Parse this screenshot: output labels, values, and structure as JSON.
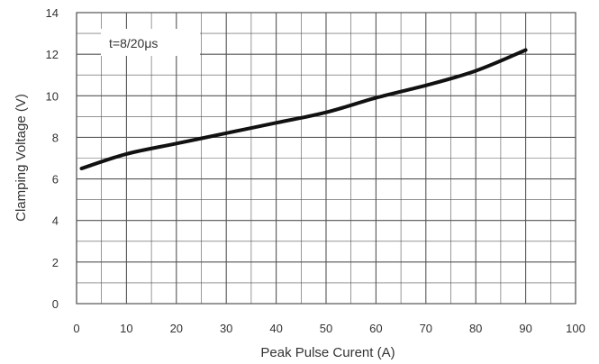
{
  "chart_data": {
    "type": "line",
    "title": "",
    "xlabel": "Peak  Pulse Curent (A)",
    "ylabel": "Clamping Voltage (V)",
    "xlim": [
      0,
      100
    ],
    "ylim": [
      0,
      14
    ],
    "x_ticks": [
      0,
      10,
      20,
      30,
      40,
      50,
      60,
      70,
      80,
      90,
      100
    ],
    "y_ticks": [
      0,
      2,
      4,
      6,
      8,
      10,
      12,
      14
    ],
    "grid": true,
    "annotation": "t=8/20μs",
    "series": [
      {
        "x": [
          1,
          10,
          20,
          30,
          40,
          50,
          60,
          70,
          80,
          90
        ],
        "values": [
          6.5,
          7.2,
          7.7,
          8.2,
          8.7,
          9.2,
          9.9,
          10.5,
          11.2,
          12.2
        ]
      }
    ]
  },
  "colors": {
    "line": "#111111",
    "grid": "#555555",
    "text": "#333333",
    "background": "#ffffff"
  }
}
